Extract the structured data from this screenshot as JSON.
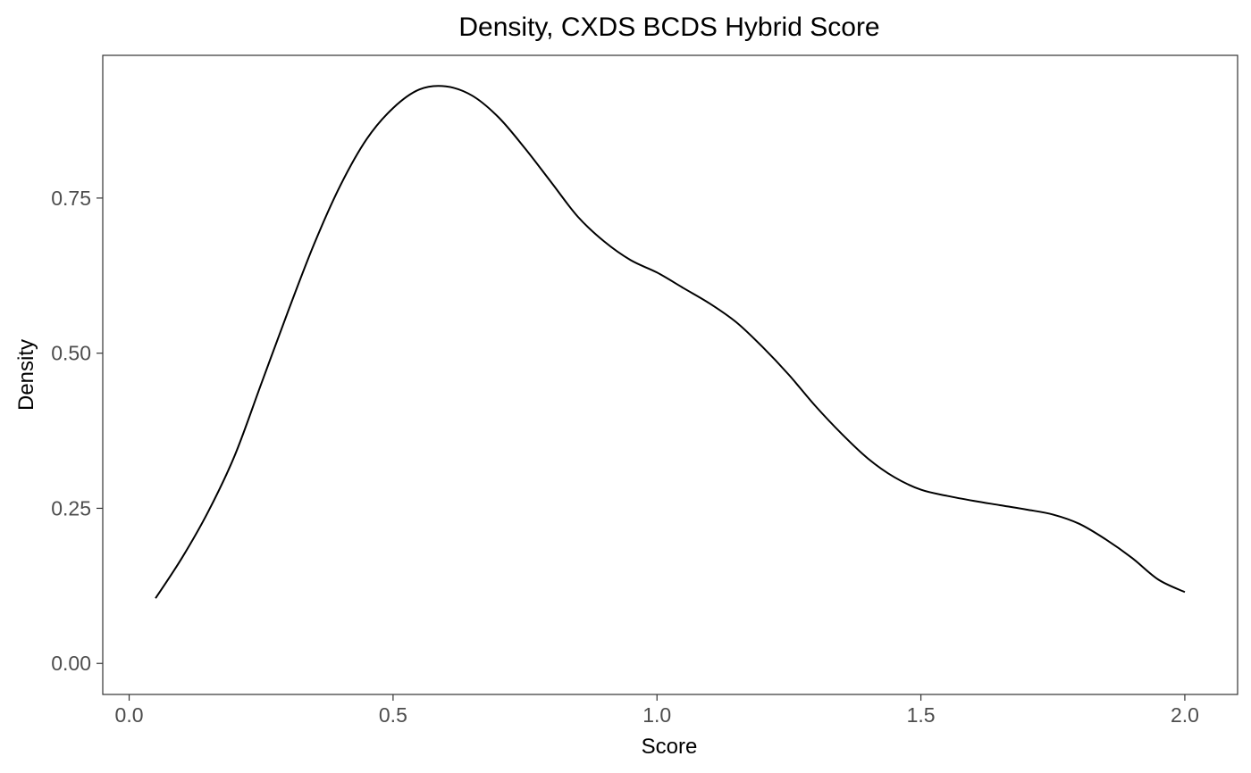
{
  "chart_data": {
    "type": "line",
    "title": "Density, CXDS BCDS Hybrid Score",
    "xlabel": "Score",
    "ylabel": "Density",
    "xlim": [
      -0.05,
      2.1
    ],
    "ylim": [
      -0.05,
      0.98
    ],
    "x_ticks": [
      0.0,
      0.5,
      1.0,
      1.5,
      2.0
    ],
    "x_tick_labels": [
      "0.0",
      "0.5",
      "1.0",
      "1.5",
      "2.0"
    ],
    "y_ticks": [
      0.0,
      0.25,
      0.5,
      0.75
    ],
    "y_tick_labels": [
      "0.00",
      "0.25",
      "0.50",
      "0.75"
    ],
    "grid": false,
    "legend": "none",
    "line_color": "#000000",
    "series": [
      {
        "x": [
          0.05,
          0.1,
          0.15,
          0.2,
          0.25,
          0.3,
          0.35,
          0.4,
          0.45,
          0.5,
          0.55,
          0.6,
          0.65,
          0.7,
          0.75,
          0.8,
          0.85,
          0.9,
          0.95,
          1.0,
          1.05,
          1.1,
          1.15,
          1.2,
          1.25,
          1.3,
          1.35,
          1.4,
          1.45,
          1.5,
          1.55,
          1.6,
          1.65,
          1.7,
          1.75,
          1.8,
          1.85,
          1.9,
          1.95,
          2.0
        ],
        "y": [
          0.105,
          0.17,
          0.245,
          0.335,
          0.45,
          0.565,
          0.675,
          0.77,
          0.845,
          0.895,
          0.925,
          0.93,
          0.915,
          0.88,
          0.83,
          0.775,
          0.72,
          0.68,
          0.65,
          0.63,
          0.605,
          0.58,
          0.55,
          0.51,
          0.465,
          0.415,
          0.37,
          0.33,
          0.3,
          0.28,
          0.27,
          0.262,
          0.255,
          0.248,
          0.24,
          0.225,
          0.2,
          0.17,
          0.135,
          0.115
        ]
      }
    ]
  }
}
